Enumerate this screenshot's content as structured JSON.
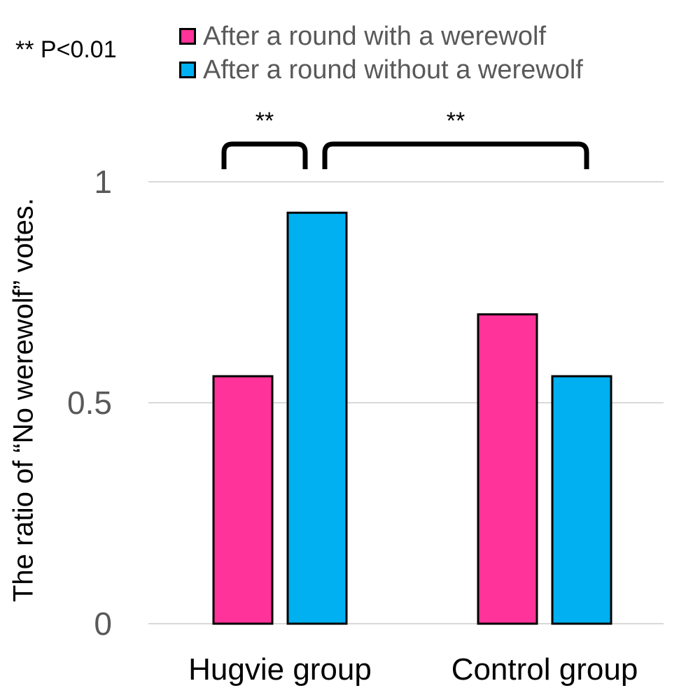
{
  "significance_note": "** P<0.01",
  "colors": {
    "with_werewolf": "#FF3399",
    "without_werewolf": "#00B0F0",
    "grid": "#D9D9D9",
    "tick_text": "#595959"
  },
  "chart_data": {
    "type": "bar",
    "categories": [
      "Hugvie group",
      "Control group"
    ],
    "series": [
      {
        "name": "After a round with a werewolf",
        "values": [
          0.56,
          0.7
        ]
      },
      {
        "name": "After a round without a werewolf",
        "values": [
          0.93,
          0.56
        ]
      }
    ],
    "xlabel": "",
    "ylabel": "The ratio of  “No werewolf” votes.",
    "ylim": [
      0,
      1
    ],
    "yticks": [
      "0",
      "0.5",
      "1"
    ],
    "grid": true,
    "legend": "top",
    "annotations": [
      {
        "label": "**",
        "between": [
          "Hugvie group / with werewolf",
          "Hugvie group / without werewolf"
        ]
      },
      {
        "label": "**",
        "between": [
          "Hugvie group / without werewolf",
          "Control group / without werewolf"
        ]
      }
    ]
  }
}
